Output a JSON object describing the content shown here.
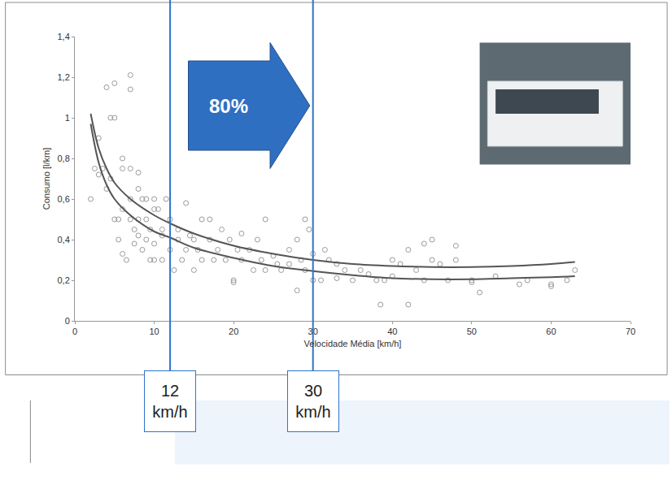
{
  "chart_data": {
    "type": "scatter",
    "xlabel": "Velocidade Média [km/h]",
    "ylabel": "Consumo [l/km]",
    "xlim": [
      0,
      70
    ],
    "xticks": [
      0,
      10,
      20,
      30,
      40,
      50,
      60,
      70
    ],
    "ylim": [
      0,
      1.4
    ],
    "yticks": [
      0,
      {
        "value": 0.2,
        "label": "0,2"
      },
      {
        "value": 0.4,
        "label": "0,4"
      },
      {
        "value": 0.6,
        "label": "0,6"
      },
      {
        "value": 0.8,
        "label": "0,8"
      },
      1,
      {
        "value": 1.2,
        "label": "1,2"
      },
      {
        "value": 1.4,
        "label": "1,4"
      }
    ],
    "grid": false,
    "series": [
      {
        "type": "scatter",
        "marker": "circle-open",
        "color": "#9a9a9a",
        "x": [
          2,
          2.5,
          3,
          3,
          3.5,
          4,
          4,
          4.5,
          4.5,
          5,
          5,
          5,
          5.5,
          5.5,
          6,
          6,
          6,
          6,
          6.5,
          7,
          7,
          7,
          7,
          7,
          7.5,
          7.5,
          8,
          8,
          8,
          8,
          8.5,
          8.5,
          9,
          9,
          9,
          9.5,
          9.5,
          10,
          10,
          10,
          10,
          10.5,
          11,
          11,
          11,
          11.5,
          12,
          12,
          12.5,
          13,
          13,
          13.5,
          14,
          14,
          14.5,
          15,
          15,
          15.5,
          16,
          16,
          17,
          17,
          17.5,
          18,
          18.5,
          19,
          19.5,
          20,
          20,
          20.5,
          21,
          21,
          22,
          22.5,
          23,
          23.5,
          24,
          24,
          25,
          25.5,
          26,
          27,
          27,
          28,
          28,
          28.5,
          29,
          29,
          29.5,
          30,
          30,
          31,
          31.5,
          32,
          33,
          33,
          34,
          35,
          36,
          37,
          38,
          38.5,
          39,
          40,
          40,
          41,
          42,
          42,
          43,
          44,
          44,
          45,
          45,
          46,
          47,
          48,
          48,
          50,
          50,
          51,
          53,
          56,
          57,
          60,
          60,
          62,
          63
        ],
        "values": [
          0.6,
          0.75,
          0.9,
          0.72,
          0.75,
          1.15,
          0.65,
          1.0,
          0.7,
          1.17,
          1.0,
          0.5,
          0.5,
          0.4,
          0.8,
          0.75,
          0.55,
          0.33,
          0.3,
          1.21,
          1.14,
          0.75,
          0.6,
          0.5,
          0.45,
          0.38,
          0.73,
          0.65,
          0.5,
          0.42,
          0.6,
          0.35,
          0.6,
          0.5,
          0.4,
          0.45,
          0.3,
          0.6,
          0.55,
          0.38,
          0.3,
          0.55,
          0.45,
          0.42,
          0.3,
          0.6,
          0.35,
          0.5,
          0.25,
          0.45,
          0.4,
          0.3,
          0.58,
          0.35,
          0.42,
          0.4,
          0.25,
          0.35,
          0.5,
          0.3,
          0.5,
          0.4,
          0.3,
          0.35,
          0.45,
          0.3,
          0.4,
          0.2,
          0.19,
          0.35,
          0.43,
          0.3,
          0.35,
          0.25,
          0.4,
          0.3,
          0.5,
          0.25,
          0.32,
          0.28,
          0.25,
          0.35,
          0.28,
          0.4,
          0.15,
          0.3,
          0.5,
          0.25,
          0.45,
          0.33,
          0.2,
          0.2,
          0.35,
          0.3,
          0.21,
          0.28,
          0.25,
          0.2,
          0.25,
          0.23,
          0.2,
          0.08,
          0.2,
          0.3,
          0.22,
          0.28,
          0.35,
          0.08,
          0.25,
          0.38,
          0.2,
          0.4,
          0.3,
          0.28,
          0.2,
          0.37,
          0.3,
          0.19,
          0.2,
          0.14,
          0.22,
          0.18,
          0.2,
          0.17,
          0.18,
          0.2,
          0.25
        ]
      },
      {
        "type": "line",
        "line_style": "solid",
        "color": "#555555",
        "x": [
          2,
          3,
          4,
          5,
          7,
          10,
          12,
          15,
          20,
          25,
          30,
          35,
          40,
          45,
          50,
          55,
          60,
          63
        ],
        "values": [
          1.02,
          0.85,
          0.75,
          0.68,
          0.6,
          0.52,
          0.48,
          0.43,
          0.37,
          0.33,
          0.3,
          0.28,
          0.27,
          0.265,
          0.265,
          0.27,
          0.28,
          0.29
        ]
      },
      {
        "type": "line",
        "line_style": "solid",
        "color": "#555555",
        "x": [
          2,
          3,
          4,
          5,
          7,
          10,
          12,
          15,
          20,
          25,
          30,
          35,
          40,
          45,
          50,
          55,
          60,
          63
        ],
        "values": [
          0.97,
          0.78,
          0.67,
          0.6,
          0.52,
          0.44,
          0.41,
          0.36,
          0.31,
          0.27,
          0.245,
          0.225,
          0.21,
          0.205,
          0.205,
          0.21,
          0.215,
          0.22
        ]
      }
    ],
    "markers": [
      {
        "x": 12,
        "label": [
          "12",
          "km/h"
        ],
        "color": "#2f74c8"
      },
      {
        "x": 30,
        "label": [
          "30",
          "km/h"
        ],
        "color": "#2f74c8"
      }
    ],
    "annotations": [
      {
        "text": "80%",
        "color": "#2f6fc2"
      }
    ]
  }
}
